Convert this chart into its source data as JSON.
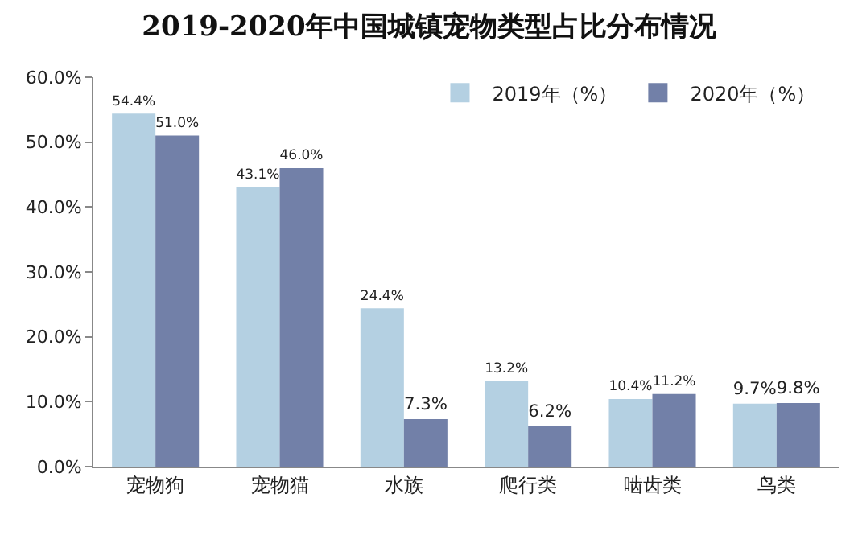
{
  "chart_data": {
    "type": "bar",
    "title": "2019-2020年中国城镇宠物类型占比分布情况",
    "categories": [
      "宠物狗",
      "宠物猫",
      "水族",
      "爬行类",
      "啮齿类",
      "鸟类"
    ],
    "series": [
      {
        "name": "2019年（%）",
        "color": "#b4d0e2",
        "values": [
          54.4,
          43.1,
          24.4,
          13.2,
          10.4,
          9.7
        ],
        "value_labels": [
          "54.4%",
          "43.1%",
          "24.4%",
          "13.2%",
          "10.4%",
          "9.7%"
        ]
      },
      {
        "name": "2020年（%）",
        "color": "#7280a8",
        "values": [
          51.0,
          46.0,
          7.3,
          6.2,
          11.2,
          9.8
        ],
        "value_labels": [
          "51.0%",
          "46.0%",
          "7.3%",
          "6.2%",
          "11.2%",
          "9.8%"
        ]
      }
    ],
    "ylim": [
      0,
      60
    ],
    "yticks": [
      {
        "value": 0,
        "label": "0.0%"
      },
      {
        "value": 10,
        "label": "10.0%"
      },
      {
        "value": 20,
        "label": "20.0%"
      },
      {
        "value": 30,
        "label": "30.0%"
      },
      {
        "value": 40,
        "label": "40.0%"
      },
      {
        "value": 50,
        "label": "50.0%"
      },
      {
        "value": 60,
        "label": "60.0%"
      }
    ],
    "grid": false,
    "legend": "top right"
  }
}
